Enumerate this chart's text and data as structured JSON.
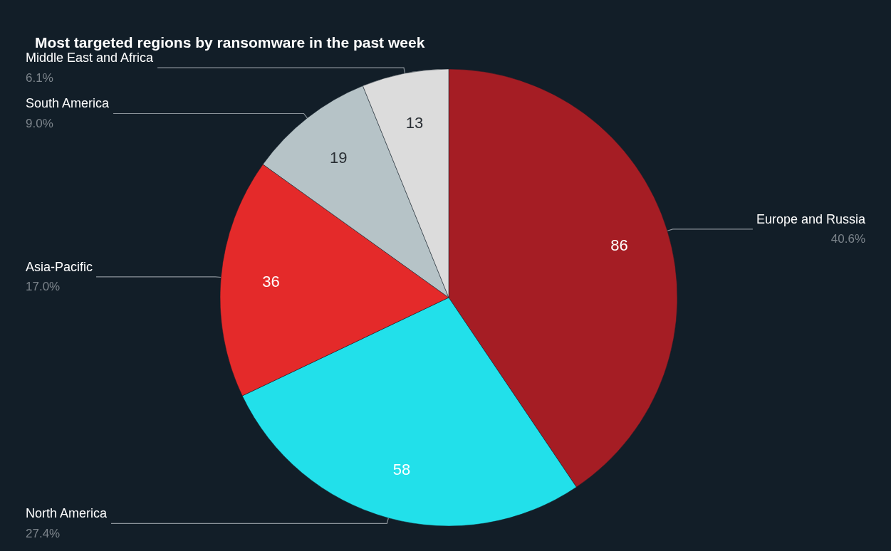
{
  "chart_data": {
    "type": "pie",
    "title": "Most targeted regions by ransomware in the past week",
    "categories": [
      "Europe and Russia",
      "North America",
      "Asia-Pacific",
      "South America",
      "Middle East and Africa"
    ],
    "values": [
      86,
      58,
      36,
      19,
      13
    ],
    "colors": [
      "#a51d24",
      "#22e0ea",
      "#e42a2a",
      "#b6c3c7",
      "#dcdcdc"
    ],
    "annotations": [
      "40.6%",
      "27.4%",
      "17.0%",
      "9.0%",
      "6.1%"
    ],
    "data_labels": true,
    "legend": false
  }
}
